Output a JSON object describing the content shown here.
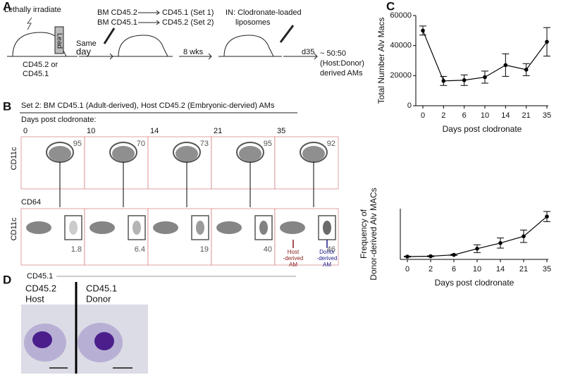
{
  "panel_labels": [
    "A",
    "B",
    "C",
    "D"
  ],
  "panel_a": {
    "irradiate": "Lethally irradiate",
    "lead": "Lead",
    "strain_1": "CD45.2  or",
    "strain_2": "CD45.1",
    "same": "Same",
    "day": "day",
    "bm_1_from": "BM CD45.2",
    "bm_1_to": "CD45.1 (Set 1)",
    "bm_2_from": "BM CD45.1",
    "bm_2_to": "CD45.2 (Set 2)",
    "wks": "8 wks",
    "in_1": "IN: Clodronate-loaded",
    "in_2": "liposomes",
    "d35": "d35",
    "result_1": "~ 50:50",
    "result_2": "(Host:Donor)",
    "result_3": "derived AMs"
  },
  "panel_b": {
    "title": "Set 2: BM CD45.1 (Adult-derived), Host CD45.2 (Embryonic-dervied) AMs",
    "days_label": "Days post clodronate:",
    "days": [
      "0",
      "10",
      "14",
      "21",
      "35"
    ],
    "top_percent": [
      "95",
      "70",
      "73",
      "95",
      "92"
    ],
    "bottom_percent": [
      "1.8",
      "6.4",
      "19",
      "40",
      "46"
    ],
    "top_ylabel": "CD11c",
    "top_xlabel": "CD64",
    "bottom_ylabel": "CD11c",
    "bottom_xlabel": "CD45.1",
    "host_label": [
      "Host",
      "-derived",
      "AM"
    ],
    "donor_label": [
      "Donor",
      "-derived",
      "AM"
    ]
  },
  "panel_d": {
    "left": [
      "CD45.2",
      "Host"
    ],
    "right": [
      "CD45.1",
      "Donor"
    ]
  },
  "chart_data": [
    {
      "type": "line",
      "ylabel": [
        "Total Number Alv Macs"
      ],
      "xlabel": "Days post clodronate",
      "categories": [
        "0",
        "2",
        "6",
        "10",
        "14",
        "21",
        "35"
      ],
      "values": [
        50000,
        16500,
        17000,
        19000,
        27000,
        24000,
        42500
      ],
      "errors": [
        3000,
        3000,
        3500,
        4000,
        7500,
        4000,
        9500
      ],
      "color": "#000000",
      "ylim": [
        0,
        60000
      ],
      "yticks": [
        0,
        20000,
        40000,
        60000
      ]
    },
    {
      "type": "line",
      "ylabel": [
        "Frequency of",
        "Donor-derived Alv MACs"
      ],
      "xlabel": "Days post clodronate",
      "categories": [
        "0",
        "2",
        "6",
        "10",
        "14",
        "21",
        "35"
      ],
      "values": [
        2.5,
        2.8,
        4,
        9.5,
        14.5,
        20.5,
        38
      ],
      "errors": [
        0.4,
        0.4,
        0.5,
        3.5,
        4.5,
        5.5,
        4.5
      ],
      "color": "#000000",
      "ylim": [
        0,
        45
      ]
    }
  ]
}
